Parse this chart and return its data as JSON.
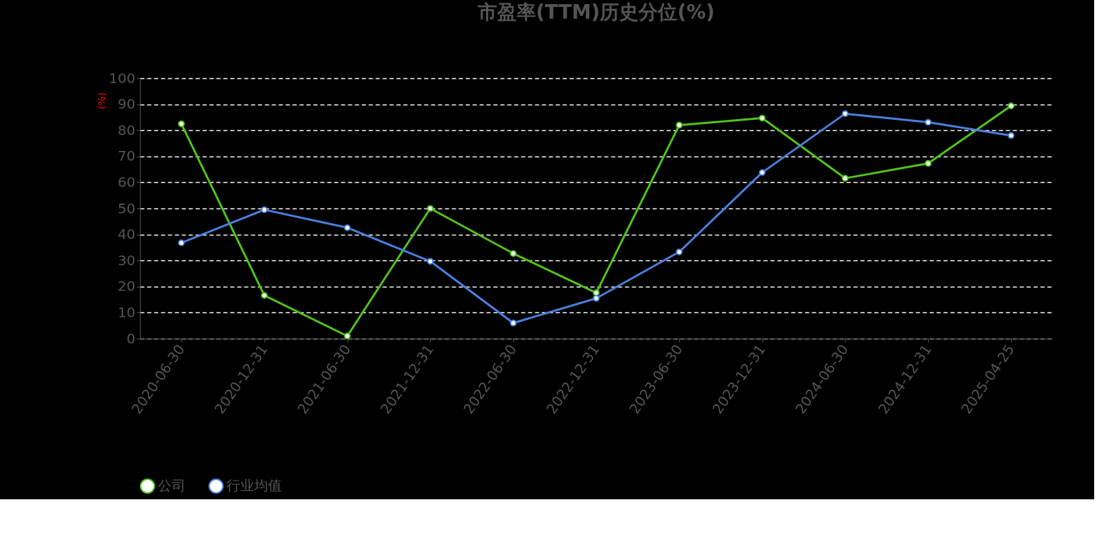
{
  "chart_data": {
    "type": "line",
    "title": "市盈率(TTM)历史分位(%)",
    "ylabel": "(%)",
    "categories": [
      "2020-06-30",
      "2020-12-31",
      "2021-06-30",
      "2021-12-31",
      "2022-06-30",
      "2022-12-31",
      "2023-06-30",
      "2023-12-31",
      "2024-06-30",
      "2024-12-31",
      "2025-04-25"
    ],
    "series": [
      {
        "name": "公司",
        "color": "#52c41a",
        "values": [
          82.5,
          16.6,
          1,
          50,
          32.7,
          17.6,
          82,
          84.7,
          61.6,
          67.3,
          89.4
        ]
      },
      {
        "name": "行业均值",
        "color": "#4a80e0",
        "values": [
          36.8,
          49.5,
          42.6,
          29.7,
          6,
          15.5,
          33.3,
          63.8,
          86.4,
          83.1,
          78
        ]
      }
    ],
    "ylim": [
      0,
      100
    ],
    "yticks": [
      0,
      10,
      20,
      30,
      40,
      50,
      60,
      70,
      80,
      90,
      100
    ],
    "grid": "y",
    "legend": "bottom",
    "marker": "circle",
    "line_style": "solid"
  }
}
